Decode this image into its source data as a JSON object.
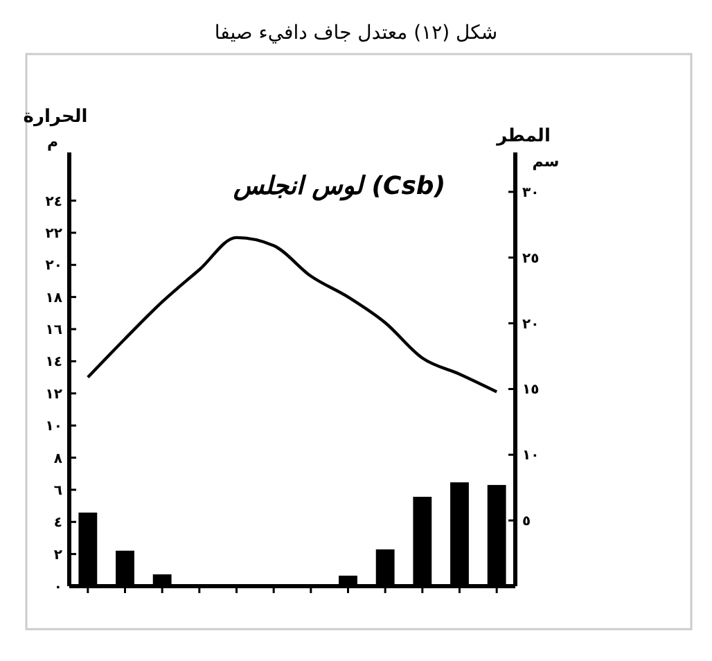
{
  "chart_data": {
    "type": "line",
    "title": "شكل (١٢) معتدل جاف دافيء صيفا",
    "subtitle": "لوس انجلس (Csb)",
    "ylabel": "الحرارة",
    "y2label": "المطر",
    "annotations": [
      "م",
      "سم"
    ],
    "categories": [
      null,
      null,
      null,
      null,
      null,
      null,
      null,
      null,
      null,
      null,
      null,
      null
    ],
    "series": [
      {
        "type": "bar",
        "axis": "y2",
        "color": "#000000",
        "values": [
          5.6,
          2.7,
          0.9,
          0,
          0,
          0,
          0,
          0.8,
          2.8,
          6.8,
          7.9,
          7.7
        ]
      },
      {
        "color": "#000000",
        "values": [
          13.0,
          15.4,
          17.7,
          19.7,
          21.7,
          21.2,
          19.3,
          18.0,
          16.4,
          14.2,
          13.2,
          12.1
        ]
      }
    ],
    "ylim": [
      0,
      27
    ],
    "yticks": [
      {
        "value": 0,
        "label": "٠"
      },
      {
        "value": 2,
        "label": "٢"
      },
      {
        "value": 4,
        "label": "٤"
      },
      {
        "value": 6,
        "label": "٦"
      },
      {
        "value": 8,
        "label": "٨"
      },
      {
        "value": 10,
        "label": "١٠"
      },
      {
        "value": 12,
        "label": "١٢"
      },
      {
        "value": 14,
        "label": "١٤"
      },
      {
        "value": 16,
        "label": "١٦"
      },
      {
        "value": 18,
        "label": "١٨"
      },
      {
        "value": 20,
        "label": "٢٠"
      },
      {
        "value": 22,
        "label": "٢٢"
      },
      {
        "value": 24,
        "label": "٢٤"
      }
    ],
    "y2lim": [
      0,
      33
    ],
    "y2ticks": [
      {
        "value": 0,
        "label": null
      },
      {
        "value": 5,
        "label": "٥"
      },
      {
        "value": 10,
        "label": "١٠"
      },
      {
        "value": 15,
        "label": "١٥"
      },
      {
        "value": 20,
        "label": "٢٠"
      },
      {
        "value": 25,
        "label": "٢٥"
      },
      {
        "value": 30,
        "label": "٣٠"
      }
    ],
    "grid": false
  }
}
